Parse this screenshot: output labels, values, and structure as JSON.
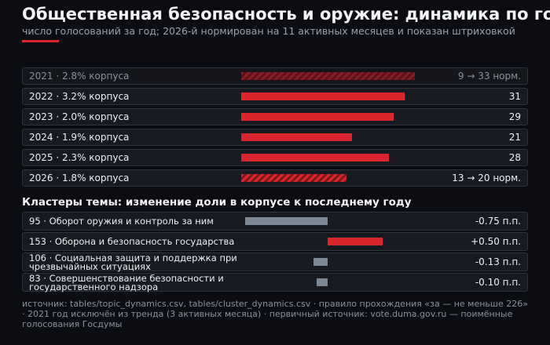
{
  "title": "Общественная безопасность и оружие: динамика по годам",
  "subtitle": "число голосований за год; 2026-й нормирован на 11 активных месяцев и показан штриховкой",
  "footer": "источник: tables/topic_dynamics.csv, tables/cluster_dynamics.csv · правило прохождения «за — не меньше 226» · 2021 год исключён из тренда (3 активных месяца) · первичный источник: vote.duma.gov.ru — поимённые голосования Госдумы",
  "chart_data": [
    {
      "type": "bar",
      "categories": [
        "2021 · 2.8% корпуса",
        "2022 · 3.2% корпуса",
        "2023 · 2.0% корпуса",
        "2024 · 1.9% корпуса",
        "2025 · 2.3% корпуса",
        "2026 · 1.8% корпуса"
      ],
      "values": [
        33,
        31,
        29,
        21,
        28,
        20
      ],
      "value_labels": [
        "9 → 33 норм.",
        "31",
        "29",
        "21",
        "28",
        "13 → 20 норм."
      ],
      "hatched": [
        true,
        false,
        false,
        false,
        false,
        true
      ],
      "dimmed": [
        true,
        false,
        false,
        false,
        false,
        false
      ],
      "color": "#d9252b"
    },
    {
      "type": "diverging-bar",
      "title": "Кластеры темы: изменение доли в корпусе к последнему году",
      "categories": [
        "95 · Оборот оружия и контроль за ним",
        "153 · Оборона и безопасность государства",
        "106 · Социальная защита и поддержка при чрезвычайных ситуациях",
        "83 · Совершенствование безопасности и государственного надзора"
      ],
      "values": [
        -0.75,
        0.5,
        -0.13,
        -0.1
      ],
      "value_labels": [
        "-0.75 п.п.",
        "+0.50 п.п.",
        "-0.13 п.п.",
        "-0.10 п.п."
      ],
      "positive_color": "#d9252b",
      "negative_color": "#7d8794"
    }
  ]
}
